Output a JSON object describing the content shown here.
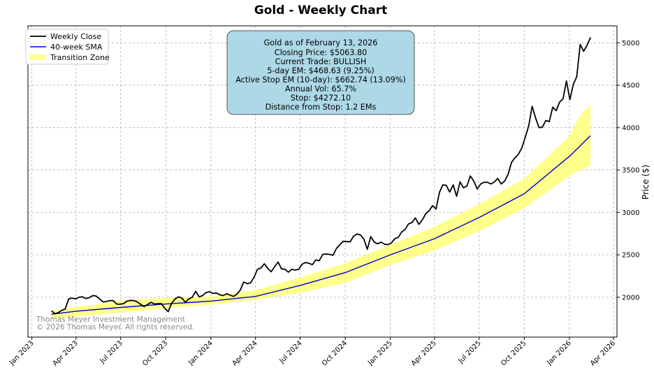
{
  "chart_data": {
    "type": "line",
    "title": "Gold - Weekly Chart",
    "xlabel": "",
    "ylabel": "Price ($)",
    "ylim": [
      1530,
      5200
    ],
    "xlim": [
      "2022-12-24",
      "2026-04-08"
    ],
    "y_ticks": [
      2000,
      2500,
      3000,
      3500,
      4000,
      4500,
      5000
    ],
    "x_ticks": [
      {
        "date": "2023-01-01",
        "label": "Jan 2023"
      },
      {
        "date": "2023-04-01",
        "label": "Apr 2023"
      },
      {
        "date": "2023-07-01",
        "label": "Jul 2023"
      },
      {
        "date": "2023-10-01",
        "label": "Oct 2023"
      },
      {
        "date": "2024-01-01",
        "label": "Jan 2024"
      },
      {
        "date": "2024-04-01",
        "label": "Apr 2024"
      },
      {
        "date": "2024-07-01",
        "label": "Jul 2024"
      },
      {
        "date": "2024-10-01",
        "label": "Oct 2024"
      },
      {
        "date": "2025-01-01",
        "label": "Jan 2025"
      },
      {
        "date": "2025-04-01",
        "label": "Apr 2025"
      },
      {
        "date": "2025-07-01",
        "label": "Jul 2025"
      },
      {
        "date": "2025-10-01",
        "label": "Oct 2025"
      },
      {
        "date": "2026-01-01",
        "label": "Jan 2026"
      },
      {
        "date": "2026-04-01",
        "label": "Apr 2026"
      }
    ],
    "grid": true,
    "legend_position": "top-left",
    "series": [
      {
        "name": "Weekly Close",
        "color": "#000000",
        "points": [
          [
            "2023-02-10",
            1840
          ],
          [
            "2023-02-17",
            1805
          ],
          [
            "2023-02-24",
            1820
          ],
          [
            "2023-03-03",
            1845
          ],
          [
            "2023-03-10",
            1860
          ],
          [
            "2023-03-17",
            1980
          ],
          [
            "2023-03-24",
            1990
          ],
          [
            "2023-03-31",
            1980
          ],
          [
            "2023-04-07",
            2000
          ],
          [
            "2023-04-14",
            2005
          ],
          [
            "2023-04-21",
            1985
          ],
          [
            "2023-04-28",
            1995
          ],
          [
            "2023-05-05",
            2020
          ],
          [
            "2023-05-12",
            2015
          ],
          [
            "2023-05-19",
            1980
          ],
          [
            "2023-05-26",
            1945
          ],
          [
            "2023-06-02",
            1950
          ],
          [
            "2023-06-09",
            1960
          ],
          [
            "2023-06-16",
            1960
          ],
          [
            "2023-06-23",
            1920
          ],
          [
            "2023-06-30",
            1918
          ],
          [
            "2023-07-07",
            1925
          ],
          [
            "2023-07-14",
            1955
          ],
          [
            "2023-07-21",
            1962
          ],
          [
            "2023-07-28",
            1960
          ],
          [
            "2023-08-04",
            1945
          ],
          [
            "2023-08-11",
            1915
          ],
          [
            "2023-08-18",
            1890
          ],
          [
            "2023-08-25",
            1915
          ],
          [
            "2023-09-01",
            1940
          ],
          [
            "2023-09-08",
            1920
          ],
          [
            "2023-09-15",
            1925
          ],
          [
            "2023-09-22",
            1925
          ],
          [
            "2023-09-29",
            1870
          ],
          [
            "2023-10-06",
            1830
          ],
          [
            "2023-10-13",
            1930
          ],
          [
            "2023-10-20",
            1980
          ],
          [
            "2023-10-27",
            2005
          ],
          [
            "2023-11-03",
            1990
          ],
          [
            "2023-11-10",
            1940
          ],
          [
            "2023-11-17",
            1980
          ],
          [
            "2023-11-24",
            2000
          ],
          [
            "2023-12-01",
            2070
          ],
          [
            "2023-12-08",
            2005
          ],
          [
            "2023-12-15",
            2020
          ],
          [
            "2023-12-22",
            2055
          ],
          [
            "2023-12-29",
            2065
          ],
          [
            "2024-01-05",
            2045
          ],
          [
            "2024-01-12",
            2050
          ],
          [
            "2024-01-19",
            2030
          ],
          [
            "2024-01-26",
            2020
          ],
          [
            "2024-02-02",
            2040
          ],
          [
            "2024-02-09",
            2025
          ],
          [
            "2024-02-16",
            2010
          ],
          [
            "2024-02-23",
            2035
          ],
          [
            "2024-03-01",
            2085
          ],
          [
            "2024-03-08",
            2180
          ],
          [
            "2024-03-15",
            2160
          ],
          [
            "2024-03-22",
            2170
          ],
          [
            "2024-03-29",
            2235
          ],
          [
            "2024-04-05",
            2330
          ],
          [
            "2024-04-12",
            2345
          ],
          [
            "2024-04-19",
            2395
          ],
          [
            "2024-04-26",
            2340
          ],
          [
            "2024-05-03",
            2300
          ],
          [
            "2024-05-10",
            2360
          ],
          [
            "2024-05-17",
            2415
          ],
          [
            "2024-05-24",
            2335
          ],
          [
            "2024-05-31",
            2330
          ],
          [
            "2024-06-07",
            2295
          ],
          [
            "2024-06-14",
            2330
          ],
          [
            "2024-06-21",
            2320
          ],
          [
            "2024-06-28",
            2330
          ],
          [
            "2024-07-05",
            2390
          ],
          [
            "2024-07-12",
            2410
          ],
          [
            "2024-07-19",
            2400
          ],
          [
            "2024-07-26",
            2385
          ],
          [
            "2024-08-02",
            2440
          ],
          [
            "2024-08-09",
            2430
          ],
          [
            "2024-08-16",
            2505
          ],
          [
            "2024-08-23",
            2510
          ],
          [
            "2024-08-30",
            2505
          ],
          [
            "2024-09-06",
            2495
          ],
          [
            "2024-09-13",
            2575
          ],
          [
            "2024-09-20",
            2620
          ],
          [
            "2024-09-27",
            2660
          ],
          [
            "2024-10-04",
            2655
          ],
          [
            "2024-10-11",
            2655
          ],
          [
            "2024-10-18",
            2720
          ],
          [
            "2024-10-25",
            2745
          ],
          [
            "2024-11-01",
            2735
          ],
          [
            "2024-11-08",
            2685
          ],
          [
            "2024-11-15",
            2565
          ],
          [
            "2024-11-22",
            2715
          ],
          [
            "2024-11-29",
            2650
          ],
          [
            "2024-12-06",
            2630
          ],
          [
            "2024-12-13",
            2650
          ],
          [
            "2024-12-20",
            2625
          ],
          [
            "2024-12-27",
            2620
          ],
          [
            "2025-01-03",
            2640
          ],
          [
            "2025-01-10",
            2690
          ],
          [
            "2025-01-17",
            2705
          ],
          [
            "2025-01-24",
            2770
          ],
          [
            "2025-01-31",
            2800
          ],
          [
            "2025-02-07",
            2865
          ],
          [
            "2025-02-14",
            2880
          ],
          [
            "2025-02-21",
            2935
          ],
          [
            "2025-02-28",
            2860
          ],
          [
            "2025-03-07",
            2910
          ],
          [
            "2025-03-14",
            2985
          ],
          [
            "2025-03-21",
            3020
          ],
          [
            "2025-03-28",
            3080
          ],
          [
            "2025-04-04",
            3040
          ],
          [
            "2025-04-11",
            3235
          ],
          [
            "2025-04-18",
            3325
          ],
          [
            "2025-04-25",
            3320
          ],
          [
            "2025-05-02",
            3240
          ],
          [
            "2025-05-09",
            3325
          ],
          [
            "2025-05-16",
            3190
          ],
          [
            "2025-05-23",
            3360
          ],
          [
            "2025-05-30",
            3290
          ],
          [
            "2025-06-06",
            3310
          ],
          [
            "2025-06-13",
            3430
          ],
          [
            "2025-06-20",
            3370
          ],
          [
            "2025-06-27",
            3275
          ],
          [
            "2025-07-04",
            3335
          ],
          [
            "2025-07-11",
            3355
          ],
          [
            "2025-07-18",
            3355
          ],
          [
            "2025-07-25",
            3335
          ],
          [
            "2025-08-01",
            3360
          ],
          [
            "2025-08-08",
            3400
          ],
          [
            "2025-08-15",
            3335
          ],
          [
            "2025-08-22",
            3370
          ],
          [
            "2025-08-29",
            3450
          ],
          [
            "2025-09-05",
            3590
          ],
          [
            "2025-09-12",
            3645
          ],
          [
            "2025-09-19",
            3685
          ],
          [
            "2025-09-26",
            3760
          ],
          [
            "2025-10-03",
            3885
          ],
          [
            "2025-10-10",
            4020
          ],
          [
            "2025-10-17",
            4250
          ],
          [
            "2025-10-24",
            4115
          ],
          [
            "2025-10-31",
            4000
          ],
          [
            "2025-11-07",
            4005
          ],
          [
            "2025-11-14",
            4085
          ],
          [
            "2025-11-21",
            4070
          ],
          [
            "2025-11-28",
            4240
          ],
          [
            "2025-12-05",
            4200
          ],
          [
            "2025-12-12",
            4300
          ],
          [
            "2025-12-19",
            4340
          ],
          [
            "2025-12-26",
            4550
          ],
          [
            "2026-01-02",
            4330
          ],
          [
            "2026-01-09",
            4510
          ],
          [
            "2026-01-16",
            4600
          ],
          [
            "2026-01-23",
            4980
          ],
          [
            "2026-01-30",
            4900
          ],
          [
            "2026-02-06",
            4970
          ],
          [
            "2026-02-13",
            5064
          ]
        ]
      },
      {
        "name": "40-week SMA",
        "color": "#0000cc",
        "points": [
          [
            "2023-02-10",
            1800
          ],
          [
            "2023-04-01",
            1835
          ],
          [
            "2023-07-01",
            1880
          ],
          [
            "2023-10-01",
            1920
          ],
          [
            "2024-01-01",
            1955
          ],
          [
            "2024-04-01",
            2010
          ],
          [
            "2024-07-01",
            2140
          ],
          [
            "2024-10-01",
            2290
          ],
          [
            "2025-01-01",
            2500
          ],
          [
            "2025-04-01",
            2690
          ],
          [
            "2025-07-01",
            2940
          ],
          [
            "2025-10-01",
            3220
          ],
          [
            "2026-01-01",
            3660
          ],
          [
            "2026-02-13",
            3905
          ]
        ]
      }
    ],
    "band": {
      "name": "Transition Zone",
      "color": "#ffff66",
      "points": [
        [
          "2023-02-10",
          1745,
          1840
        ],
        [
          "2023-07-01",
          1820,
          1960
        ],
        [
          "2023-10-01",
          1870,
          1995
        ],
        [
          "2024-01-01",
          1910,
          2010
        ],
        [
          "2024-04-01",
          1970,
          2085
        ],
        [
          "2024-07-01",
          2050,
          2235
        ],
        [
          "2024-10-01",
          2170,
          2400
        ],
        [
          "2025-01-01",
          2380,
          2620
        ],
        [
          "2025-04-01",
          2550,
          2830
        ],
        [
          "2025-07-01",
          2780,
          3100
        ],
        [
          "2025-10-01",
          3050,
          3400
        ],
        [
          "2026-01-01",
          3430,
          3900
        ],
        [
          "2026-01-23",
          3500,
          4150
        ],
        [
          "2026-02-13",
          3550,
          4270
        ]
      ]
    },
    "info_box": {
      "lines": [
        "Gold as of February 13, 2026",
        "Closing Price: $5063.80",
        "Current Trade: BULLISH",
        "5-day EM: $468.63 (9.25%)",
        "Active Stop EM (10-day): $662.74 (13.09%)",
        "Annual Vol: 65.7%",
        "Stop: $4272.10",
        "Distance from Stop: 1.2 EMs"
      ],
      "background": "#add8e6"
    },
    "watermark": [
      "Thomas Meyer Investment Management",
      "© 2026 Thomas Meyer. All rights reserved."
    ]
  }
}
